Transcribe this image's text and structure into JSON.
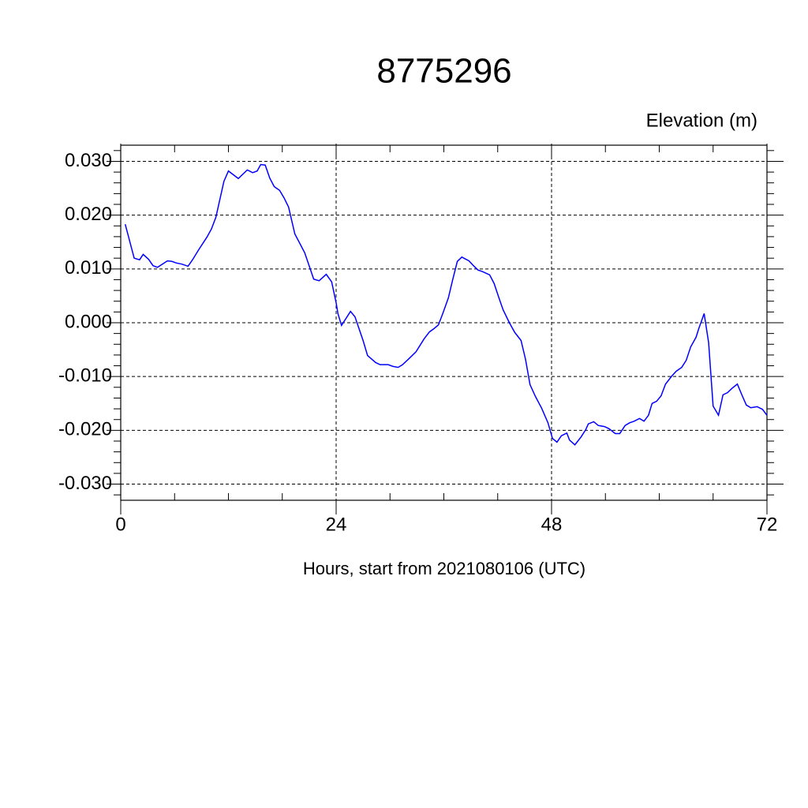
{
  "chart_data": {
    "type": "line",
    "title": "8775296",
    "subtitle": "Elevation (m)",
    "x_label": "Hours, start from 2021080106 (UTC)",
    "x": [
      0.5,
      1.5,
      2.1,
      2.5,
      3.1,
      3.6,
      4.1,
      5.2,
      5.7,
      6.2,
      6.8,
      7.5,
      8.0,
      8.7,
      9.6,
      10.1,
      10.6,
      11.5,
      12.0,
      13.1,
      14.1,
      14.7,
      15.2,
      15.6,
      16.1,
      16.6,
      17.1,
      17.7,
      18.2,
      18.7,
      19.4,
      20.5,
      21.5,
      22.1,
      22.9,
      23.5,
      24.0,
      24.2,
      24.6,
      25.6,
      26.1,
      27.0,
      27.5,
      28.4,
      28.9,
      29.8,
      30.3,
      30.9,
      31.4,
      32.1,
      32.9,
      33.8,
      34.4,
      34.9,
      35.4,
      35.9,
      36.5,
      37.0,
      37.5,
      38.0,
      38.8,
      39.3,
      39.8,
      40.3,
      41.1,
      41.6,
      42.1,
      42.6,
      43.3,
      43.9,
      44.6,
      45.1,
      45.6,
      46.2,
      46.9,
      47.6,
      48.1,
      48.6,
      49.1,
      49.7,
      50.0,
      50.6,
      51.3,
      51.8,
      52.1,
      52.7,
      53.2,
      53.9,
      54.4,
      55.1,
      55.6,
      56.2,
      56.7,
      57.2,
      57.8,
      58.3,
      58.8,
      59.2,
      59.7,
      60.2,
      60.7,
      61.4,
      61.9,
      62.5,
      63.0,
      63.5,
      64.1,
      64.4,
      65.0,
      65.5,
      66.0,
      66.6,
      67.1,
      67.6,
      68.1,
      68.7,
      69.2,
      69.7,
      70.2,
      70.9,
      71.5,
      72.0
    ],
    "series": [
      {
        "name": "Elevation",
        "color": "#0000ff",
        "values": [
          0.0183,
          0.012,
          0.0117,
          0.0127,
          0.0118,
          0.0106,
          0.0103,
          0.0115,
          0.0114,
          0.0111,
          0.0109,
          0.0105,
          0.0117,
          0.0136,
          0.0159,
          0.0174,
          0.0196,
          0.0263,
          0.0282,
          0.0268,
          0.0284,
          0.0279,
          0.0282,
          0.0294,
          0.0293,
          0.0269,
          0.0253,
          0.0246,
          0.0232,
          0.0215,
          0.0165,
          0.013,
          0.0081,
          0.0078,
          0.009,
          0.0076,
          0.0037,
          0.0017,
          -0.0005,
          0.0021,
          0.0011,
          -0.0033,
          -0.0061,
          -0.0074,
          -0.0078,
          -0.0078,
          -0.0081,
          -0.0083,
          -0.0078,
          -0.0067,
          -0.0054,
          -0.003,
          -0.0017,
          -0.0011,
          -0.0004,
          0.0018,
          0.0046,
          0.0081,
          0.0114,
          0.0122,
          0.0115,
          0.0106,
          0.0098,
          0.0095,
          0.0089,
          0.0073,
          0.0048,
          0.0024,
          0.0,
          -0.0018,
          -0.0033,
          -0.0068,
          -0.0115,
          -0.0137,
          -0.0159,
          -0.0186,
          -0.0215,
          -0.0222,
          -0.021,
          -0.0205,
          -0.0218,
          -0.0227,
          -0.0212,
          -0.0199,
          -0.0188,
          -0.0184,
          -0.0191,
          -0.0193,
          -0.0197,
          -0.0206,
          -0.0206,
          -0.0191,
          -0.0186,
          -0.0183,
          -0.0178,
          -0.0183,
          -0.0172,
          -0.015,
          -0.0146,
          -0.0136,
          -0.0114,
          -0.0099,
          -0.009,
          -0.0083,
          -0.007,
          -0.0045,
          -0.0027,
          -0.0011,
          0.0017,
          -0.0037,
          -0.0155,
          -0.0172,
          -0.0134,
          -0.013,
          -0.0122,
          -0.0114,
          -0.0134,
          -0.0153,
          -0.0158,
          -0.0156,
          -0.0161,
          -0.0172
        ]
      }
    ],
    "xlim": [
      0,
      72
    ],
    "xticks": [
      0,
      24,
      48,
      72
    ],
    "xminorticks": [
      6,
      12,
      18,
      30,
      36,
      42,
      54,
      60,
      66
    ],
    "ylim": [
      -0.033,
      0.033
    ],
    "yticks": [
      {
        "value": -0.03,
        "label": "-0.030"
      },
      {
        "value": -0.02,
        "label": "-0.020"
      },
      {
        "value": -0.01,
        "label": "-0.010"
      },
      {
        "value": 0,
        "label": "0.000"
      },
      {
        "value": 0.01,
        "label": "0.010"
      },
      {
        "value": 0.02,
        "label": "0.020"
      },
      {
        "value": 0.03,
        "label": "0.030"
      }
    ],
    "yminorticks": [
      -0.032,
      -0.028,
      -0.026,
      -0.024,
      -0.022,
      -0.018,
      -0.016,
      -0.014,
      -0.012,
      -0.008,
      -0.006,
      -0.004,
      -0.002,
      0.002,
      0.004,
      0.006,
      0.008,
      0.012,
      0.014,
      0.016,
      0.018,
      0.022,
      0.024,
      0.026,
      0.028,
      0.032
    ],
    "grid": true
  }
}
